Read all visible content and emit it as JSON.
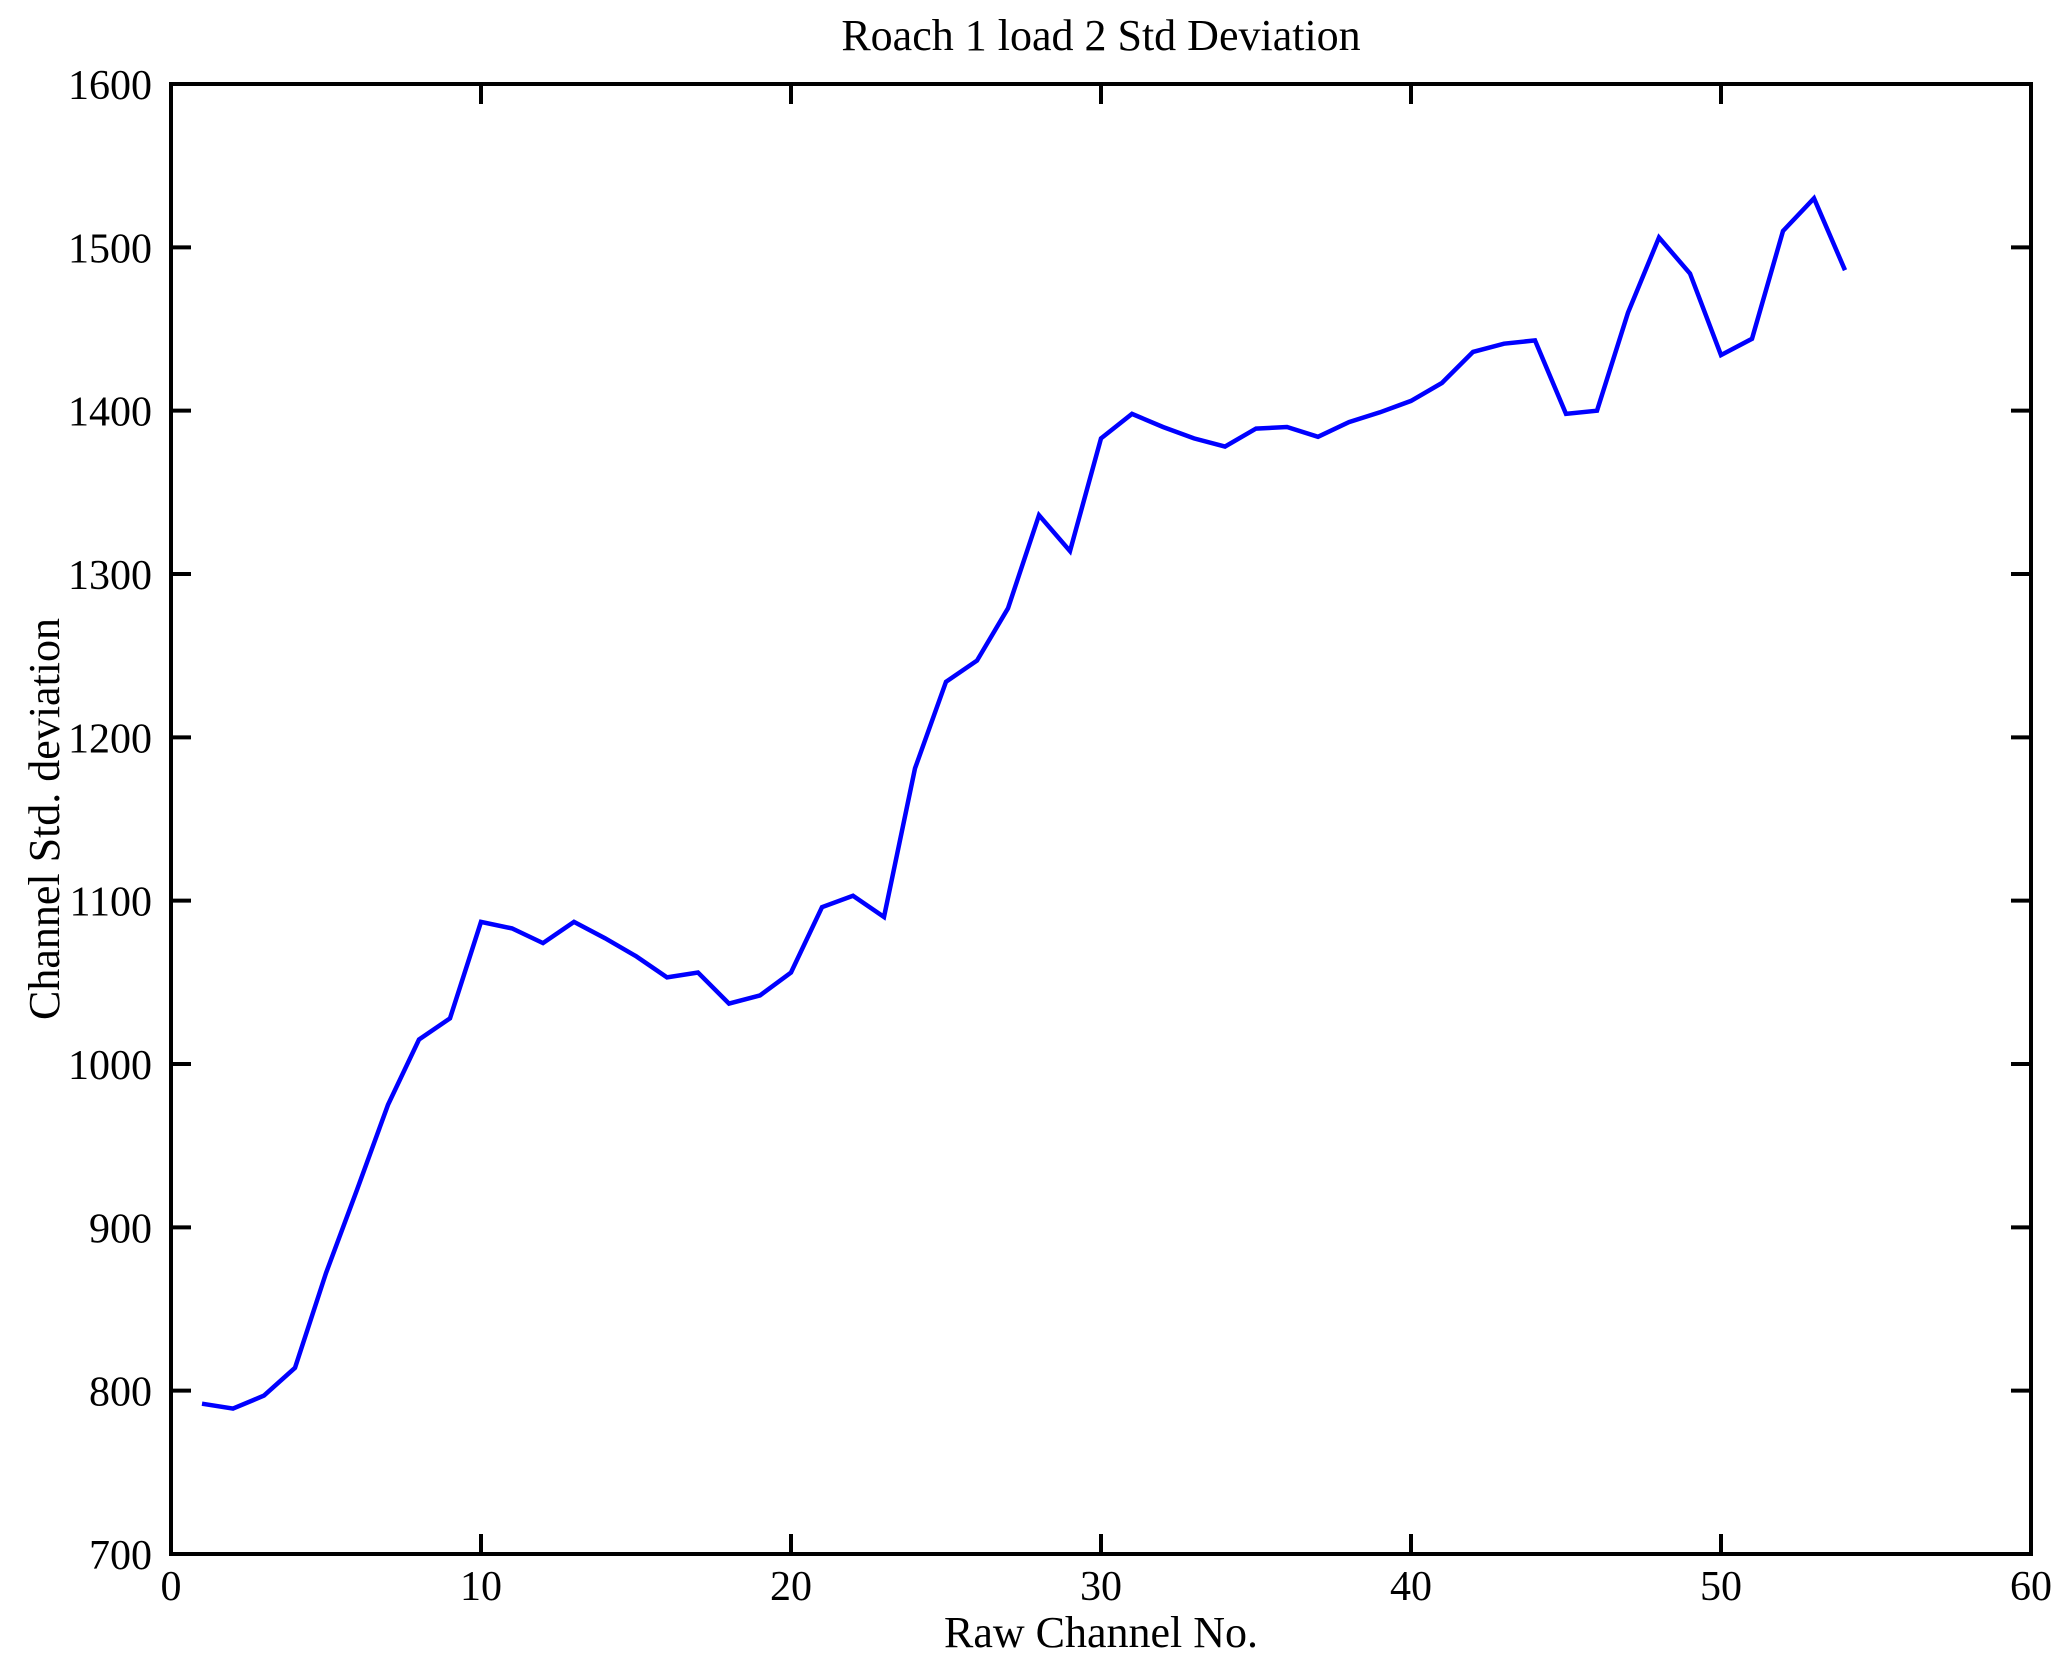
{
  "page": {
    "background_color": "#ffffff"
  },
  "chart_data": {
    "type": "line",
    "title": "Roach 1 load 2 Std Deviation",
    "xlabel": "Raw Channel No.",
    "ylabel": "Channel Std. deviation",
    "xlim": [
      0,
      60
    ],
    "ylim": [
      700,
      1600
    ],
    "xticks": [
      0,
      10,
      20,
      30,
      40,
      50,
      60
    ],
    "yticks": [
      700,
      800,
      900,
      1000,
      1100,
      1200,
      1300,
      1400,
      1500,
      1600
    ],
    "grid": false,
    "box": true,
    "legend": "none",
    "line_color": "#0000ff",
    "axis_color": "#000000",
    "x": [
      1,
      2,
      3,
      4,
      5,
      6,
      7,
      8,
      9,
      10,
      11,
      12,
      13,
      14,
      15,
      16,
      17,
      18,
      19,
      20,
      21,
      22,
      23,
      24,
      25,
      26,
      27,
      28,
      29,
      30,
      31,
      32,
      33,
      34,
      35,
      36,
      37,
      38,
      39,
      40,
      41,
      42,
      43,
      44,
      45,
      46,
      47,
      48,
      49,
      50,
      51,
      52,
      53,
      54
    ],
    "y": [
      792,
      789,
      797,
      814,
      872,
      923,
      975,
      1015,
      1028,
      1087,
      1083,
      1074,
      1087,
      1077,
      1066,
      1053,
      1056,
      1037,
      1042,
      1056,
      1096,
      1103,
      1090,
      1181,
      1234,
      1247,
      1279,
      1336,
      1314,
      1383,
      1398,
      1390,
      1383,
      1378,
      1389,
      1390,
      1384,
      1393,
      1399,
      1406,
      1417,
      1436,
      1441,
      1443,
      1398,
      1400,
      1460,
      1506,
      1484,
      1434,
      1444,
      1510,
      1530,
      1486
    ]
  }
}
